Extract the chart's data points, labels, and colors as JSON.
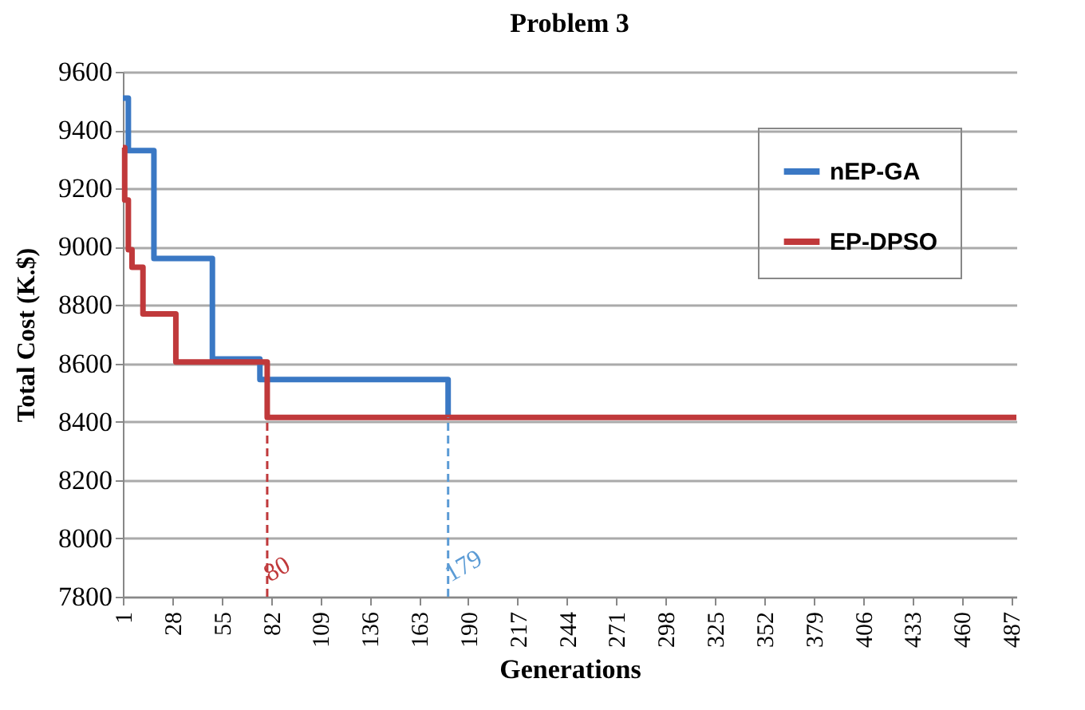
{
  "chart_data": {
    "type": "step",
    "title": "Problem 3",
    "xlabel": "Generations",
    "ylabel": "Total Cost (K.$)",
    "series": [
      {
        "name": "nEP-GA",
        "color": "#3a78c4",
        "x": [
          1,
          4,
          18,
          50,
          76,
          179
        ],
        "values": [
          9510,
          9330,
          8960,
          8615,
          8545,
          8415
        ]
      },
      {
        "name": "EP-DPSO",
        "color": "#c0393b",
        "x": [
          1,
          2,
          4,
          6,
          12,
          30,
          80,
          490
        ],
        "values": [
          9340,
          9160,
          8990,
          8930,
          8770,
          8605,
          8415,
          8415
        ]
      }
    ],
    "xlim": [
      1,
      490
    ],
    "xticks": [
      1,
      28,
      55,
      82,
      109,
      136,
      163,
      190,
      217,
      244,
      271,
      298,
      325,
      352,
      379,
      406,
      433,
      460,
      487
    ],
    "ylim": [
      7800,
      9600
    ],
    "yticks": [
      7800,
      8000,
      8200,
      8400,
      8600,
      8800,
      9000,
      9200,
      9400,
      9600
    ],
    "ref_lines": [
      {
        "axis": "x",
        "value": 80,
        "label": "80",
        "color": "#c0393b",
        "line_style": "dashed"
      },
      {
        "axis": "x",
        "value": 179,
        "label": "179",
        "color": "#5b9bd5",
        "line_style": "dashed"
      }
    ],
    "grid": "y",
    "legend": "top right",
    "line_style": "solid"
  }
}
